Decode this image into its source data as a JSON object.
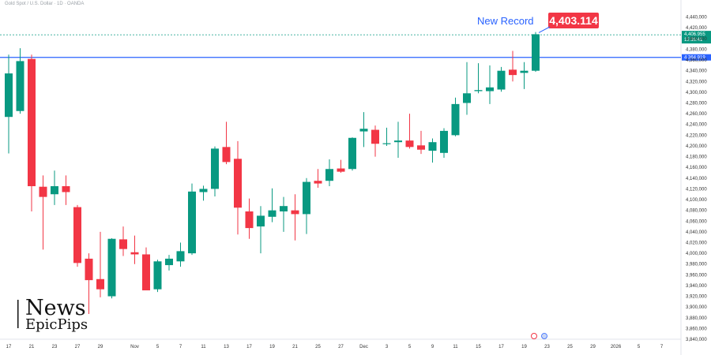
{
  "header": {
    "symbol_text": "Gold Spot / U.S. Dollar · 1D · OANDA"
  },
  "watermark": {
    "line1": "News",
    "line2": "EpicPips"
  },
  "colors": {
    "up": "#089981",
    "down": "#f23645",
    "line": "#2962ff",
    "record": "#f23645"
  },
  "chart_data": {
    "type": "candlestick",
    "title": "",
    "annotation": "New Record",
    "record_value": "4,403.114",
    "ylim": [
      3840,
      4460
    ],
    "y_ticks": [
      3840,
      3860,
      3880,
      3900,
      3920,
      3940,
      3960,
      3980,
      4000,
      4020,
      4040,
      4060,
      4080,
      4100,
      4120,
      4140,
      4160,
      4180,
      4200,
      4220,
      4240,
      4260,
      4280,
      4300,
      4320,
      4340,
      4360,
      4380,
      4400,
      4420,
      4440
    ],
    "y_tick_labels": [
      "3,840,000",
      "3,860,000",
      "3,880,000",
      "3,900,000",
      "3,920,000",
      "3,940,000",
      "3,960,000",
      "3,980,000",
      "4,000,000",
      "4,020,000",
      "4,040,000",
      "4,060,000",
      "4,080,000",
      "4,100,000",
      "4,120,000",
      "4,140,000",
      "4,160,000",
      "4,180,000",
      "4,200,000",
      "4,220,000",
      "4,240,000",
      "4,260,000",
      "4,280,000",
      "4,300,000",
      "4,320,000",
      "4,340,000",
      "4,360,000",
      "4,380,000",
      "4,400,000",
      "4,420,000",
      "4,440,000"
    ],
    "x_ticks": [
      {
        "label": "17",
        "index": 0
      },
      {
        "label": "21",
        "index": 2
      },
      {
        "label": "23",
        "index": 4
      },
      {
        "label": "27",
        "index": 6
      },
      {
        "label": "29",
        "index": 8
      },
      {
        "label": "Nov",
        "index": 11
      },
      {
        "label": "5",
        "index": 13
      },
      {
        "label": "7",
        "index": 15
      },
      {
        "label": "11",
        "index": 17
      },
      {
        "label": "13",
        "index": 19
      },
      {
        "label": "17",
        "index": 21
      },
      {
        "label": "19",
        "index": 23
      },
      {
        "label": "21",
        "index": 25
      },
      {
        "label": "25",
        "index": 27
      },
      {
        "label": "27",
        "index": 29
      },
      {
        "label": "Dec",
        "index": 31
      },
      {
        "label": "3",
        "index": 33
      },
      {
        "label": "5",
        "index": 35
      },
      {
        "label": "9",
        "index": 37
      },
      {
        "label": "11",
        "index": 39
      },
      {
        "label": "15",
        "index": 41
      },
      {
        "label": "17",
        "index": 43
      },
      {
        "label": "19",
        "index": 45
      },
      {
        "label": "23",
        "index": 47
      },
      {
        "label": "25",
        "index": 49
      },
      {
        "label": "29",
        "index": 51
      },
      {
        "label": "2026",
        "index": 53
      },
      {
        "label": "5",
        "index": 55
      },
      {
        "label": "7",
        "index": 57
      }
    ],
    "horizontal_lines": [
      {
        "value": 4364.919,
        "label": "4,364.919",
        "style": "solid"
      },
      {
        "value": 4406.955,
        "label": "4,406.955",
        "style": "dashed",
        "sub_label": "15:16:41"
      }
    ],
    "candles": [
      {
        "o": 4254,
        "h": 4370,
        "l": 4186,
        "c": 4335
      },
      {
        "o": 4265,
        "h": 4382,
        "l": 4260,
        "c": 4358
      },
      {
        "o": 4362,
        "h": 4370,
        "l": 4078,
        "c": 4125
      },
      {
        "o": 4124,
        "h": 4145,
        "l": 4007,
        "c": 4105
      },
      {
        "o": 4110,
        "h": 4154,
        "l": 4090,
        "c": 4125
      },
      {
        "o": 4125,
        "h": 4145,
        "l": 4090,
        "c": 4114
      },
      {
        "o": 4086,
        "h": 4090,
        "l": 3975,
        "c": 3982
      },
      {
        "o": 3990,
        "h": 4000,
        "l": 3887,
        "c": 3950
      },
      {
        "o": 3952,
        "h": 4040,
        "l": 3918,
        "c": 3933
      },
      {
        "o": 3920,
        "h": 4028,
        "l": 3916,
        "c": 4027
      },
      {
        "o": 4026,
        "h": 4050,
        "l": 3995,
        "c": 4008
      },
      {
        "o": 4002,
        "h": 4033,
        "l": 3980,
        "c": 3998
      },
      {
        "o": 3998,
        "h": 4011,
        "l": 3931,
        "c": 3931
      },
      {
        "o": 3933,
        "h": 3988,
        "l": 3928,
        "c": 3985
      },
      {
        "o": 3978,
        "h": 3997,
        "l": 3968,
        "c": 3990
      },
      {
        "o": 3985,
        "h": 4020,
        "l": 3975,
        "c": 4004
      },
      {
        "o": 4000,
        "h": 4130,
        "l": 3997,
        "c": 4115
      },
      {
        "o": 4114,
        "h": 4126,
        "l": 4098,
        "c": 4120
      },
      {
        "o": 4120,
        "h": 4199,
        "l": 4106,
        "c": 4195
      },
      {
        "o": 4198,
        "h": 4245,
        "l": 4166,
        "c": 4170
      },
      {
        "o": 4176,
        "h": 4209,
        "l": 4035,
        "c": 4085
      },
      {
        "o": 4078,
        "h": 4102,
        "l": 4027,
        "c": 4047
      },
      {
        "o": 4050,
        "h": 4088,
        "l": 4000,
        "c": 4070
      },
      {
        "o": 4068,
        "h": 4121,
        "l": 4058,
        "c": 4080
      },
      {
        "o": 4078,
        "h": 4105,
        "l": 4040,
        "c": 4088
      },
      {
        "o": 4080,
        "h": 4110,
        "l": 4024,
        "c": 4073
      },
      {
        "o": 4073,
        "h": 4140,
        "l": 4036,
        "c": 4133
      },
      {
        "o": 4135,
        "h": 4157,
        "l": 4122,
        "c": 4130
      },
      {
        "o": 4135,
        "h": 4175,
        "l": 4125,
        "c": 4157
      },
      {
        "o": 4158,
        "h": 4174,
        "l": 4150,
        "c": 4152
      },
      {
        "o": 4157,
        "h": 4216,
        "l": 4154,
        "c": 4215
      },
      {
        "o": 4227,
        "h": 4263,
        "l": 4198,
        "c": 4232
      },
      {
        "o": 4230,
        "h": 4238,
        "l": 4180,
        "c": 4204
      },
      {
        "o": 4204,
        "h": 4234,
        "l": 4200,
        "c": 4205
      },
      {
        "o": 4207,
        "h": 4245,
        "l": 4178,
        "c": 4210
      },
      {
        "o": 4210,
        "h": 4260,
        "l": 4195,
        "c": 4198
      },
      {
        "o": 4201,
        "h": 4228,
        "l": 4185,
        "c": 4193
      },
      {
        "o": 4191,
        "h": 4214,
        "l": 4169,
        "c": 4207
      },
      {
        "o": 4187,
        "h": 4233,
        "l": 4178,
        "c": 4228
      },
      {
        "o": 4220,
        "h": 4290,
        "l": 4218,
        "c": 4278
      },
      {
        "o": 4280,
        "h": 4356,
        "l": 4258,
        "c": 4298
      },
      {
        "o": 4302,
        "h": 4354,
        "l": 4298,
        "c": 4304
      },
      {
        "o": 4302,
        "h": 4350,
        "l": 4278,
        "c": 4309
      },
      {
        "o": 4305,
        "h": 4347,
        "l": 4301,
        "c": 4340
      },
      {
        "o": 4342,
        "h": 4377,
        "l": 4320,
        "c": 4332
      },
      {
        "o": 4336,
        "h": 4356,
        "l": 4306,
        "c": 4340
      },
      {
        "o": 4340,
        "h": 4412,
        "l": 4338,
        "c": 4408
      }
    ]
  }
}
